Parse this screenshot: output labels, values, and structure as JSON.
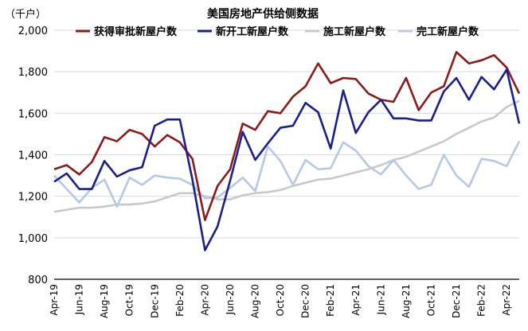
{
  "chart_data": {
    "type": "line",
    "title": "美国房地产供给侧数据",
    "ylabel": "（千户）",
    "xlabel": "",
    "ylim": [
      800,
      2000
    ],
    "yticks": [
      "800",
      "1,000",
      "1,200",
      "1,400",
      "1,600",
      "1,800",
      "2,000"
    ],
    "ytick_values": [
      800,
      1000,
      1200,
      1400,
      1600,
      1800,
      2000
    ],
    "x": [
      "Apr-19",
      "May-19",
      "Jun-19",
      "Jul-19",
      "Aug-19",
      "Sep-19",
      "Oct-19",
      "Nov-19",
      "Dec-19",
      "Jan-20",
      "Feb-20",
      "Mar-20",
      "Apr-20",
      "May-20",
      "Jun-20",
      "Jul-20",
      "Aug-20",
      "Sep-20",
      "Oct-20",
      "Nov-20",
      "Dec-20",
      "Jan-21",
      "Feb-21",
      "Mar-21",
      "Apr-21",
      "May-21",
      "Jun-21",
      "Jul-21",
      "Aug-21",
      "Sep-21",
      "Oct-21",
      "Nov-21",
      "Dec-21",
      "Jan-22",
      "Feb-22",
      "Mar-22",
      "Apr-22",
      "May-22"
    ],
    "xtick_labels": [
      "Apr-19",
      "Jun-19",
      "Aug-19",
      "Oct-19",
      "Dec-19",
      "Feb-20",
      "Apr-20",
      "Jun-20",
      "Aug-20",
      "Oct-20",
      "Dec-20",
      "Feb-21",
      "Apr-21",
      "Jun-21",
      "Aug-21",
      "Oct-21",
      "Dec-21",
      "Feb-22",
      "Apr-22"
    ],
    "grid": "horizontal",
    "legend_position": "top",
    "series": [
      {
        "name": "获得审批新屋户数",
        "color": "#8B1A1A",
        "values": [
          1330,
          1350,
          1305,
          1365,
          1485,
          1465,
          1520,
          1500,
          1440,
          1495,
          1460,
          1380,
          1085,
          1250,
          1330,
          1550,
          1520,
          1610,
          1600,
          1680,
          1730,
          1840,
          1745,
          1770,
          1765,
          1695,
          1665,
          1655,
          1770,
          1615,
          1700,
          1730,
          1895,
          1840,
          1855,
          1880,
          1820,
          1695
        ]
      },
      {
        "name": "新开工新屋户数",
        "color": "#1A1F8C",
        "values": [
          1270,
          1310,
          1235,
          1235,
          1370,
          1295,
          1325,
          1340,
          1540,
          1570,
          1570,
          1280,
          940,
          1055,
          1275,
          1510,
          1375,
          1455,
          1530,
          1540,
          1650,
          1605,
          1430,
          1710,
          1505,
          1605,
          1665,
          1575,
          1575,
          1565,
          1565,
          1705,
          1770,
          1665,
          1775,
          1715,
          1810,
          1550
        ]
      },
      {
        "name": "施工新屋户数",
        "color": "#C8C8C8",
        "values": [
          1125,
          1135,
          1145,
          1145,
          1150,
          1160,
          1160,
          1165,
          1175,
          1195,
          1215,
          1215,
          1200,
          1185,
          1185,
          1205,
          1215,
          1220,
          1230,
          1250,
          1265,
          1280,
          1285,
          1300,
          1315,
          1330,
          1350,
          1375,
          1390,
          1415,
          1440,
          1465,
          1500,
          1530,
          1560,
          1580,
          1630,
          1660
        ]
      },
      {
        "name": "完工新屋户数",
        "color": "#B4C8E8",
        "values": [
          1300,
          1235,
          1170,
          1240,
          1280,
          1150,
          1290,
          1255,
          1300,
          1290,
          1285,
          1255,
          1190,
          1195,
          1240,
          1290,
          1225,
          1440,
          1370,
          1255,
          1375,
          1330,
          1335,
          1460,
          1420,
          1345,
          1305,
          1375,
          1300,
          1235,
          1255,
          1400,
          1300,
          1245,
          1380,
          1370,
          1345,
          1465
        ]
      }
    ]
  }
}
